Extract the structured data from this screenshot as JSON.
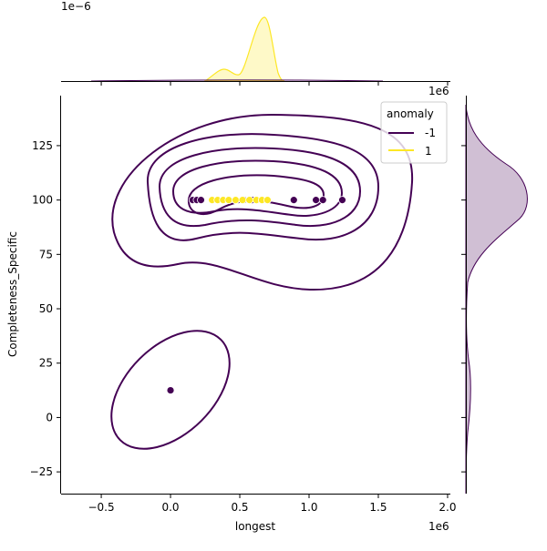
{
  "chart_data": {
    "type": "scatter",
    "subtype": "jointplot with KDE contours and marginal KDEs",
    "xlabel": "longest",
    "ylabel": "Completeness_Specific",
    "x_offset_label": "1e6",
    "top_marginal_offset_label": "1e−6",
    "right_marginal_offset_label": "1e6",
    "xlim": [
      -0.79,
      2.02
    ],
    "ylim": [
      -35,
      148
    ],
    "x_ticks": [
      "−0.5",
      "0.0",
      "0.5",
      "1.0",
      "1.5",
      "2.0"
    ],
    "x_tick_values": [
      -0.5,
      0.0,
      0.5,
      1.0,
      1.5,
      2.0
    ],
    "y_ticks": [
      "−25",
      "0",
      "25",
      "50",
      "75",
      "100",
      "125"
    ],
    "y_tick_values": [
      -25,
      0,
      25,
      50,
      75,
      100,
      125
    ],
    "grid": false,
    "legend": {
      "title": "anomaly",
      "placement": "top-right",
      "entries": [
        "-1",
        "1"
      ]
    },
    "colors": {
      "-1": "#440154",
      "1": "#fde725"
    },
    "series": [
      {
        "name": "-1",
        "x": [
          0.16,
          0.19,
          0.22,
          0.47,
          0.53,
          0.59,
          0.89,
          1.05,
          1.1,
          1.24,
          0.0
        ],
        "y": [
          100,
          100,
          100,
          100,
          100,
          100,
          100,
          100,
          100,
          100,
          12.5
        ]
      },
      {
        "name": "1",
        "x": [
          0.3,
          0.34,
          0.38,
          0.42,
          0.47,
          0.52,
          0.57,
          0.62,
          0.66,
          0.7
        ],
        "y": [
          100,
          100,
          100,
          100,
          100,
          100,
          100,
          100,
          100,
          100
        ]
      }
    ]
  }
}
